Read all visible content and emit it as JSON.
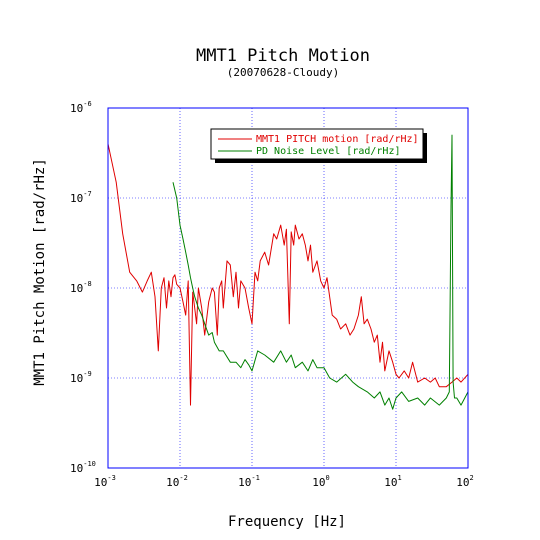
{
  "chart_data": {
    "type": "line",
    "title": "MMT1 Pitch Motion",
    "subtitle": "(20070628-Cloudy)",
    "xlabel": "Frequency [Hz]",
    "ylabel": "MMT1 Pitch Motion [rad/rHz]",
    "xscale": "log",
    "yscale": "log",
    "xlim": [
      0.001,
      100
    ],
    "ylim": [
      1e-10,
      1e-06
    ],
    "grid": true,
    "legend_position": "top-right",
    "x_ticks": [
      {
        "base": "10",
        "exp": "-3"
      },
      {
        "base": "10",
        "exp": "-2"
      },
      {
        "base": "10",
        "exp": "-1"
      },
      {
        "base": "10",
        "exp": "0"
      },
      {
        "base": "10",
        "exp": "1"
      },
      {
        "base": "10",
        "exp": "2"
      }
    ],
    "y_ticks": [
      {
        "base": "10",
        "exp": "-10"
      },
      {
        "base": "10",
        "exp": "-9"
      },
      {
        "base": "10",
        "exp": "-8"
      },
      {
        "base": "10",
        "exp": "-7"
      },
      {
        "base": "10",
        "exp": "-6"
      }
    ],
    "series": [
      {
        "name": "MMT1 PITCH motion [rad/rHz]",
        "color": "#e00000",
        "x": [
          0.001,
          0.0013,
          0.0016,
          0.002,
          0.0025,
          0.003,
          0.0035,
          0.004,
          0.0045,
          0.005,
          0.0055,
          0.006,
          0.0065,
          0.007,
          0.0075,
          0.008,
          0.0085,
          0.009,
          0.01,
          0.011,
          0.012,
          0.013,
          0.014,
          0.015,
          0.016,
          0.017,
          0.018,
          0.02,
          0.022,
          0.025,
          0.028,
          0.03,
          0.033,
          0.035,
          0.038,
          0.04,
          0.045,
          0.05,
          0.055,
          0.06,
          0.065,
          0.07,
          0.08,
          0.09,
          0.1,
          0.11,
          0.12,
          0.13,
          0.15,
          0.17,
          0.2,
          0.22,
          0.25,
          0.28,
          0.3,
          0.33,
          0.35,
          0.38,
          0.4,
          0.45,
          0.5,
          0.55,
          0.6,
          0.65,
          0.7,
          0.8,
          0.9,
          1.0,
          1.1,
          1.3,
          1.5,
          1.7,
          2.0,
          2.3,
          2.6,
          3.0,
          3.3,
          3.6,
          4.0,
          4.5,
          5.0,
          5.5,
          6.0,
          6.5,
          7.0,
          8.0,
          9.0,
          10,
          11,
          13,
          15,
          17,
          20,
          25,
          30,
          35,
          40,
          50,
          60,
          70,
          80,
          100
        ],
        "values": [
          4e-07,
          1.5e-07,
          4e-08,
          1.5e-08,
          1.2e-08,
          9e-09,
          1.2e-08,
          1.5e-08,
          8e-09,
          2e-09,
          1e-08,
          1.3e-08,
          6e-09,
          1.2e-08,
          8e-09,
          1.3e-08,
          1.4e-08,
          1.1e-08,
          1e-08,
          7e-09,
          5e-09,
          1.2e-08,
          5e-10,
          9e-09,
          6e-09,
          4e-09,
          1e-08,
          6e-09,
          3e-09,
          7e-09,
          1e-08,
          9e-09,
          3e-09,
          1e-08,
          1.2e-08,
          6e-09,
          2e-08,
          1.8e-08,
          8e-09,
          1.5e-08,
          6e-09,
          1.2e-08,
          1e-08,
          6e-09,
          4e-09,
          1.5e-08,
          1.2e-08,
          2e-08,
          2.5e-08,
          1.8e-08,
          4e-08,
          3.5e-08,
          5e-08,
          3e-08,
          4.5e-08,
          4e-09,
          4.2e-08,
          3e-08,
          5e-08,
          3.5e-08,
          4e-08,
          3e-08,
          2e-08,
          3e-08,
          1.5e-08,
          2e-08,
          1.2e-08,
          1e-08,
          1.3e-08,
          5e-09,
          4.5e-09,
          3.5e-09,
          4e-09,
          3e-09,
          3.5e-09,
          5e-09,
          8e-09,
          4e-09,
          4.5e-09,
          3.5e-09,
          2.5e-09,
          3e-09,
          1.5e-09,
          2.5e-09,
          1.2e-09,
          2e-09,
          1.5e-09,
          1.1e-09,
          1e-09,
          1.2e-09,
          1e-09,
          1.5e-09,
          9e-10,
          1e-09,
          9e-10,
          1e-09,
          8e-10,
          8e-10,
          9e-10,
          1e-09,
          9e-10,
          1.1e-09
        ]
      },
      {
        "name": "PD Noise Level [rad/rHz]",
        "color": "#008000",
        "x": [
          0.008,
          0.009,
          0.01,
          0.011,
          0.012,
          0.013,
          0.014,
          0.015,
          0.016,
          0.018,
          0.02,
          0.022,
          0.025,
          0.028,
          0.03,
          0.035,
          0.04,
          0.05,
          0.06,
          0.07,
          0.08,
          0.09,
          0.1,
          0.12,
          0.15,
          0.2,
          0.25,
          0.3,
          0.35,
          0.4,
          0.5,
          0.6,
          0.7,
          0.8,
          1.0,
          1.2,
          1.5,
          2.0,
          2.5,
          3.0,
          4.0,
          5.0,
          6.0,
          7.0,
          8.0,
          9.0,
          10,
          12,
          15,
          20,
          25,
          30,
          40,
          50,
          55,
          58,
          60,
          62,
          65,
          70,
          80,
          100
        ],
        "values": [
          1.5e-07,
          1e-07,
          5e-08,
          3.5e-08,
          2.5e-08,
          1.8e-08,
          1.3e-08,
          1e-08,
          8e-09,
          6e-09,
          5e-09,
          4e-09,
          3e-09,
          3.2e-09,
          2.5e-09,
          2e-09,
          2e-09,
          1.5e-09,
          1.5e-09,
          1.3e-09,
          1.6e-09,
          1.4e-09,
          1.2e-09,
          2e-09,
          1.8e-09,
          1.5e-09,
          2e-09,
          1.5e-09,
          1.8e-09,
          1.3e-09,
          1.5e-09,
          1.2e-09,
          1.6e-09,
          1.3e-09,
          1.3e-09,
          1e-09,
          9e-10,
          1.1e-09,
          9e-10,
          8e-10,
          7e-10,
          6e-10,
          7e-10,
          5e-10,
          6e-10,
          4.5e-10,
          6e-10,
          7e-10,
          5.5e-10,
          6e-10,
          5e-10,
          6e-10,
          5e-10,
          6e-10,
          7e-10,
          8e-08,
          5e-07,
          9e-10,
          6e-10,
          6e-10,
          5e-10,
          7e-10
        ]
      }
    ]
  },
  "colors": {
    "axes": "#0000ff",
    "grid": "#0000ff",
    "background": "#ffffff"
  }
}
